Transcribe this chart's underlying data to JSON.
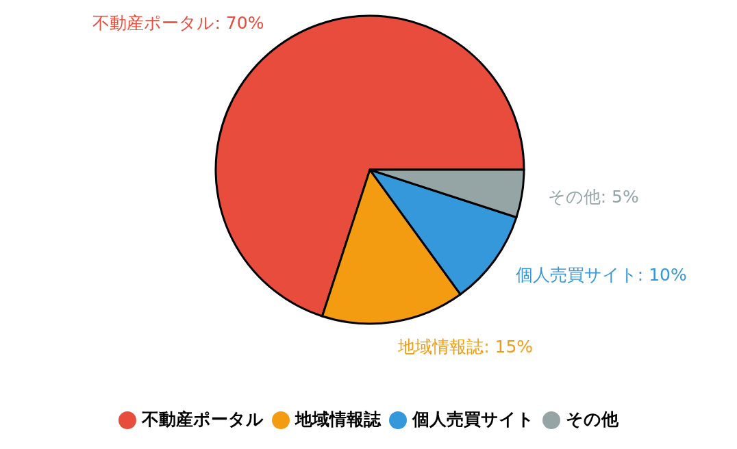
{
  "chart_data": {
    "type": "pie",
    "categories": [
      "不動産ポータル",
      "地域情報誌",
      "個人売買サイト",
      "その他"
    ],
    "values": [
      70,
      15,
      10,
      5
    ],
    "colors": [
      "#e74c3c",
      "#f39c12",
      "#3498db",
      "#95a5a6"
    ],
    "value_labels": [
      "不動産ポータル: 70%",
      "地域情報誌: 15%",
      "個人売買サイト: 10%",
      "その他: 5%"
    ],
    "legend": "bottom"
  }
}
